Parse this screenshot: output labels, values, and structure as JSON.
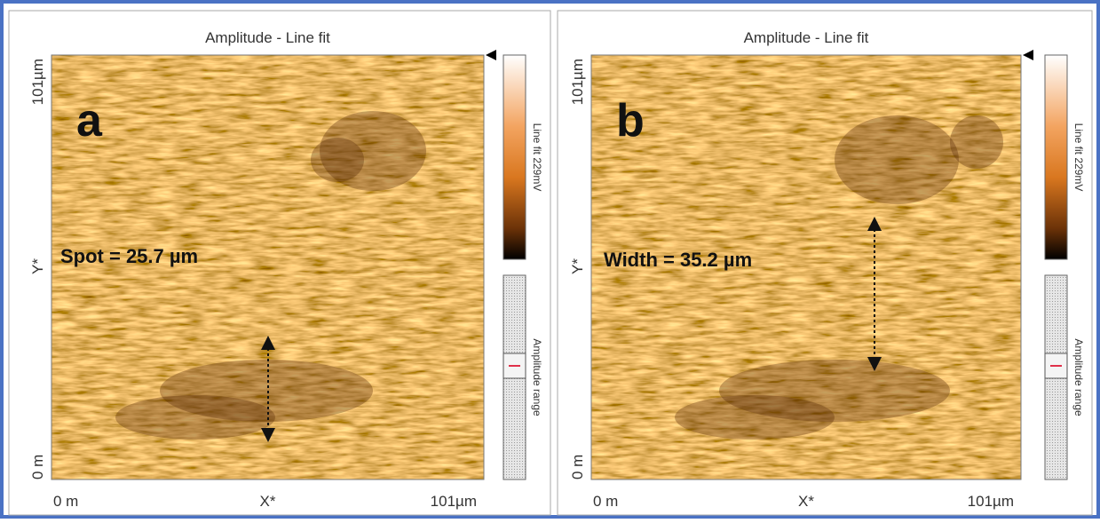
{
  "panels": [
    {
      "title": "Amplitude - Line fit",
      "letter": "a",
      "measurement": "Spot = 25.7 µm",
      "x_axis": {
        "start": "0 m",
        "label": "X*",
        "end": "101µm"
      },
      "y_axis": {
        "start": "0 m",
        "label": "Y*",
        "end": "101µm"
      },
      "colorbar_label": "Line fit 229mV",
      "range_label": "Amplitude range"
    },
    {
      "title": "Amplitude - Line fit",
      "letter": "b",
      "measurement": "Width = 35.2 µm",
      "x_axis": {
        "start": "0 m",
        "label": "X*",
        "end": "101µm"
      },
      "y_axis": {
        "start": "0 m",
        "label": "Y*",
        "end": "101µm"
      },
      "colorbar_label": "Line fit 229mV",
      "range_label": "Amplitude range"
    }
  ]
}
